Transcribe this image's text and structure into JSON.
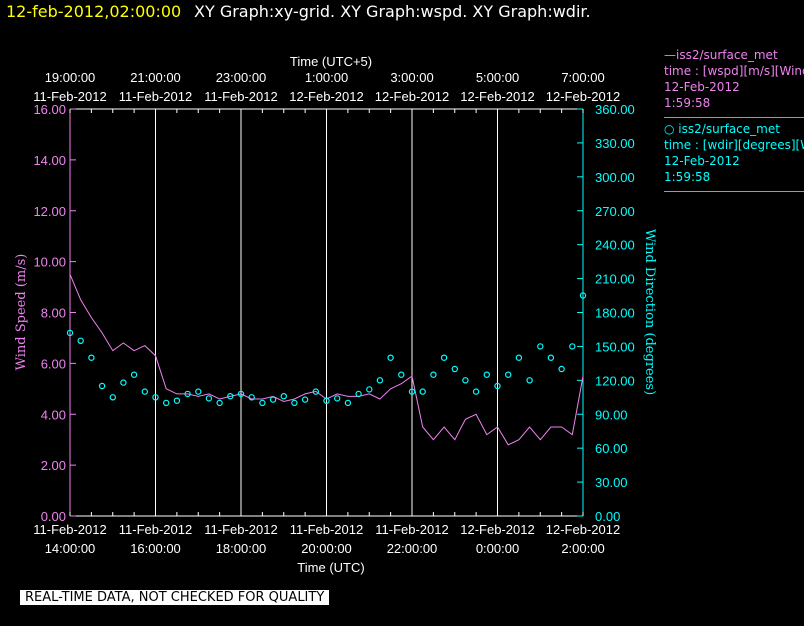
{
  "header": {
    "date_time": "12-feb-2012,02:00:00",
    "graphs": "XY Graph:xy-grid.  XY Graph:wspd.  XY Graph:wdir."
  },
  "footer": {
    "quality_note": "REAL-TIME DATA, NOT CHECKED FOR QUALITY"
  },
  "legend": [
    {
      "name": "iss2/surface_met",
      "marker": "line",
      "var": "time : [wspd][m/s][Wind",
      "date": "12-Feb-2012",
      "time": "1:59:58",
      "color": "#ee82ee"
    },
    {
      "name": "iss2/surface_met",
      "marker": "circle",
      "var": "time : [wdir][degrees][W",
      "date": "12-Feb-2012",
      "time": "1:59:58",
      "color": "#00ffff"
    }
  ],
  "chart_data": {
    "type": "line",
    "title": "",
    "x_top_label": "Time (UTC+5)",
    "x_bottom_label": "Time (UTC)",
    "y_left_label": "Wind Speed (m/s)",
    "y_right_label": "Wind Direction (degrees)",
    "x_ticks_top": [
      [
        "19:00:00",
        "11-Feb-2012"
      ],
      [
        "21:00:00",
        "11-Feb-2012"
      ],
      [
        "23:00:00",
        "11-Feb-2012"
      ],
      [
        "1:00:00",
        "12-Feb-2012"
      ],
      [
        "3:00:00",
        "12-Feb-2012"
      ],
      [
        "5:00:00",
        "12-Feb-2012"
      ],
      [
        "7:00:00",
        "12-Feb-2012"
      ]
    ],
    "x_ticks_bottom": [
      [
        "11-Feb-2012",
        "14:00:00"
      ],
      [
        "11-Feb-2012",
        "16:00:00"
      ],
      [
        "11-Feb-2012",
        "18:00:00"
      ],
      [
        "11-Feb-2012",
        "20:00:00"
      ],
      [
        "11-Feb-2012",
        "22:00:00"
      ],
      [
        "12-Feb-2012",
        "0:00:00"
      ],
      [
        "12-Feb-2012",
        "2:00:00"
      ]
    ],
    "x_range_hours_utc": [
      14,
      26
    ],
    "y_left_range": [
      0,
      16
    ],
    "y_left_ticks": [
      "0.00",
      "2.00",
      "4.00",
      "6.00",
      "8.00",
      "10.00",
      "12.00",
      "14.00",
      "16.00"
    ],
    "y_right_range": [
      0,
      360
    ],
    "y_right_ticks": [
      "0.00",
      "30.00",
      "60.00",
      "90.00",
      "120.00",
      "150.00",
      "180.00",
      "210.00",
      "240.00",
      "270.00",
      "300.00",
      "330.00",
      "360.00"
    ],
    "grid": "vertical",
    "series": [
      {
        "name": "iss2/surface_met",
        "axis": "left",
        "color": "#ee82ee",
        "style": "line",
        "x_hours_utc": [
          14.0,
          14.25,
          14.5,
          14.75,
          15.0,
          15.25,
          15.5,
          15.75,
          16.0,
          16.25,
          16.5,
          16.75,
          17.0,
          17.25,
          17.5,
          17.75,
          18.0,
          18.25,
          18.5,
          18.75,
          19.0,
          19.25,
          19.5,
          19.75,
          20.0,
          20.25,
          20.5,
          20.75,
          21.0,
          21.25,
          21.5,
          21.75,
          22.0,
          22.25,
          22.5,
          22.75,
          23.0,
          23.25,
          23.5,
          23.75,
          24.0,
          24.25,
          24.5,
          24.75,
          25.0,
          25.25,
          25.5,
          25.75,
          26.0
        ],
        "values": [
          9.5,
          8.5,
          7.8,
          7.2,
          6.5,
          6.8,
          6.5,
          6.7,
          6.3,
          5.0,
          4.8,
          4.8,
          4.7,
          4.8,
          4.6,
          4.7,
          4.8,
          4.6,
          4.6,
          4.7,
          4.5,
          4.6,
          4.8,
          4.9,
          4.6,
          4.8,
          4.7,
          4.7,
          4.8,
          4.6,
          5.0,
          5.2,
          5.5,
          3.5,
          3.0,
          3.5,
          3.0,
          3.8,
          4.0,
          3.2,
          3.5,
          2.8,
          3.0,
          3.5,
          3.0,
          3.5,
          3.5,
          3.2,
          5.5
        ]
      },
      {
        "name": "iss2/surface_met",
        "axis": "right",
        "color": "#00ffff",
        "style": "circles",
        "x_hours_utc": [
          14.0,
          14.25,
          14.5,
          14.75,
          15.0,
          15.25,
          15.5,
          15.75,
          16.0,
          16.25,
          16.5,
          16.75,
          17.0,
          17.25,
          17.5,
          17.75,
          18.0,
          18.25,
          18.5,
          18.75,
          19.0,
          19.25,
          19.5,
          19.75,
          20.0,
          20.25,
          20.5,
          20.75,
          21.0,
          21.25,
          21.5,
          21.75,
          22.0,
          22.25,
          22.5,
          22.75,
          23.0,
          23.25,
          23.5,
          23.75,
          24.0,
          24.25,
          24.5,
          24.75,
          25.0,
          25.25,
          25.5,
          25.75,
          26.0
        ],
        "values": [
          162,
          155,
          140,
          115,
          105,
          118,
          125,
          110,
          105,
          100,
          102,
          108,
          110,
          104,
          100,
          106,
          108,
          105,
          100,
          103,
          106,
          100,
          103,
          110,
          102,
          104,
          100,
          108,
          112,
          120,
          140,
          125,
          110,
          110,
          125,
          140,
          130,
          120,
          110,
          125,
          115,
          125,
          140,
          120,
          150,
          140,
          130,
          150,
          195
        ]
      }
    ]
  }
}
